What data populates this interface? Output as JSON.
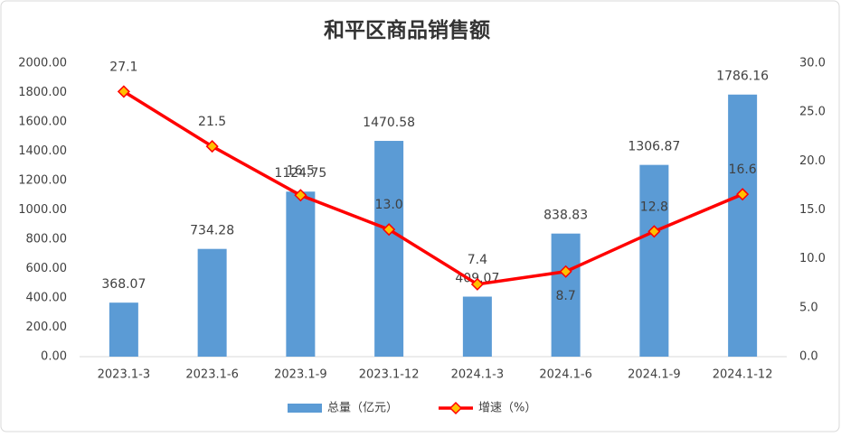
{
  "chart_data": {
    "type": "bar-line",
    "title": "和平区商品销售额",
    "categories": [
      "2023.1-3",
      "2023.1-6",
      "2023.1-9",
      "2023.1-12",
      "2024.1-3",
      "2024.1-6",
      "2024.1-9",
      "2024.1-12"
    ],
    "series": [
      {
        "name": "总量（亿元）",
        "type": "bar",
        "color": "#5b9bd5",
        "values": [
          368.07,
          734.28,
          1124.75,
          1470.58,
          409.07,
          838.83,
          1306.87,
          1786.16
        ]
      },
      {
        "name": "增速（%）",
        "type": "line",
        "axis": "y2",
        "color": "#ff0000",
        "marker_color": "#ffc000",
        "values": [
          27.1,
          21.5,
          16.5,
          13.0,
          7.4,
          8.7,
          12.8,
          16.6
        ],
        "value_labels": [
          "27.1",
          "21.5",
          "16.5",
          "13.0",
          "7.4",
          "8.7",
          "12.8",
          "16.6"
        ]
      }
    ],
    "ylim": [
      0,
      2000
    ],
    "yticks": [
      {
        "value": 0,
        "label": "0.00"
      },
      {
        "value": 200,
        "label": "200.00"
      },
      {
        "value": 400,
        "label": "400.00"
      },
      {
        "value": 600,
        "label": "600.00"
      },
      {
        "value": 800,
        "label": "800.00"
      },
      {
        "value": 1000,
        "label": "1000.00"
      },
      {
        "value": 1200,
        "label": "1200.00"
      },
      {
        "value": 1400,
        "label": "1400.00"
      },
      {
        "value": 1600,
        "label": "1600.00"
      },
      {
        "value": 1800,
        "label": "1800.00"
      },
      {
        "value": 2000,
        "label": "2000.00"
      }
    ],
    "y2lim": [
      0,
      30
    ],
    "y2ticks": [
      {
        "value": 0,
        "label": "0.0"
      },
      {
        "value": 5,
        "label": "5.0"
      },
      {
        "value": 10,
        "label": "10.0"
      },
      {
        "value": 15,
        "label": "15.0"
      },
      {
        "value": 20,
        "label": "20.0"
      },
      {
        "value": 25,
        "label": "25.0"
      },
      {
        "value": 30,
        "label": "30.0"
      }
    ],
    "grid": false,
    "legend": "bottom"
  }
}
